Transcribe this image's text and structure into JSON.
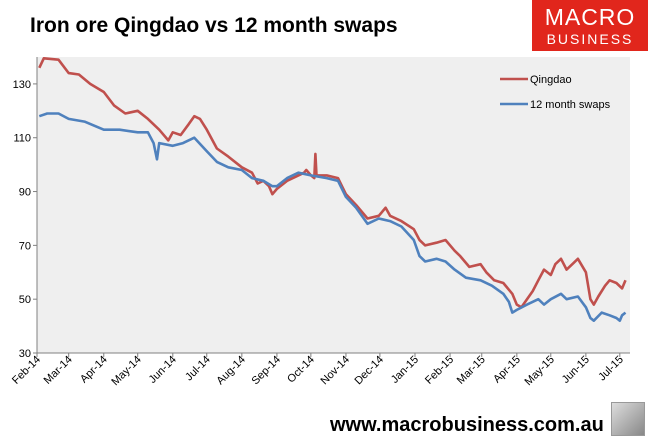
{
  "title": "Iron ore Qingdao vs 12 month swaps",
  "logo": {
    "line1": "MACRO",
    "line2": "BUSINESS"
  },
  "footer": "www.macrobusiness.com.au",
  "colors": {
    "qingdao": "#c0504d",
    "swaps": "#4f81bd",
    "plot_bg": "#efefef",
    "brand": "#e1261c"
  },
  "chart_data": {
    "type": "line",
    "title": "Iron ore Qingdao vs 12 month swaps",
    "xlabel": "",
    "ylabel": "",
    "ylim": [
      30,
      140
    ],
    "yticks": [
      30,
      50,
      70,
      90,
      110,
      130
    ],
    "xlim": [
      "2014-02-01",
      "2015-07-10"
    ],
    "xticks": [
      "Feb-14",
      "Mar-14",
      "Apr-14",
      "May-14",
      "Jun-14",
      "Jul-14",
      "Aug-14",
      "Sep-14",
      "Oct-14",
      "Nov-14",
      "Dec-14",
      "Jan-15",
      "Feb-15",
      "Mar-15",
      "Apr-15",
      "May-15",
      "Jun-15",
      "Jul-15"
    ],
    "xtick_dates": [
      "2014-02-01",
      "2014-03-01",
      "2014-04-01",
      "2014-05-01",
      "2014-06-01",
      "2014-07-01",
      "2014-08-01",
      "2014-09-01",
      "2014-10-01",
      "2014-11-01",
      "2014-12-01",
      "2015-01-01",
      "2015-02-01",
      "2015-03-01",
      "2015-04-01",
      "2015-05-01",
      "2015-06-01",
      "2015-07-01"
    ],
    "grid": false,
    "legend_position": "top-right",
    "series": [
      {
        "name": "Qingdao",
        "points": [
          [
            "2014-02-03",
            136
          ],
          [
            "2014-02-07",
            139.5
          ],
          [
            "2014-02-20",
            139
          ],
          [
            "2014-03-01",
            134
          ],
          [
            "2014-03-10",
            133.5
          ],
          [
            "2014-03-20",
            130
          ],
          [
            "2014-04-01",
            127
          ],
          [
            "2014-04-10",
            122
          ],
          [
            "2014-04-20",
            119
          ],
          [
            "2014-05-01",
            120
          ],
          [
            "2014-05-10",
            117
          ],
          [
            "2014-05-20",
            113
          ],
          [
            "2014-05-28",
            109
          ],
          [
            "2014-06-01",
            112
          ],
          [
            "2014-06-08",
            111
          ],
          [
            "2014-06-15",
            115
          ],
          [
            "2014-06-20",
            118
          ],
          [
            "2014-06-25",
            117
          ],
          [
            "2014-07-01",
            113
          ],
          [
            "2014-07-10",
            106
          ],
          [
            "2014-07-20",
            103
          ],
          [
            "2014-08-01",
            99
          ],
          [
            "2014-08-10",
            97
          ],
          [
            "2014-08-15",
            93
          ],
          [
            "2014-08-20",
            94
          ],
          [
            "2014-08-25",
            92
          ],
          [
            "2014-08-28",
            89
          ],
          [
            "2014-09-01",
            91
          ],
          [
            "2014-09-10",
            94
          ],
          [
            "2014-09-20",
            96
          ],
          [
            "2014-09-25",
            97
          ],
          [
            "2014-09-27",
            98
          ],
          [
            "2014-10-01",
            96
          ],
          [
            "2014-10-04",
            95
          ],
          [
            "2014-10-05",
            104
          ],
          [
            "2014-10-06",
            96
          ],
          [
            "2014-10-15",
            96
          ],
          [
            "2014-10-25",
            95
          ],
          [
            "2014-11-01",
            89
          ],
          [
            "2014-11-10",
            85
          ],
          [
            "2014-11-20",
            80
          ],
          [
            "2014-11-30",
            81
          ],
          [
            "2014-12-06",
            84
          ],
          [
            "2014-12-10",
            81
          ],
          [
            "2014-12-20",
            79
          ],
          [
            "2014-12-31",
            76
          ],
          [
            "2015-01-05",
            72
          ],
          [
            "2015-01-10",
            70
          ],
          [
            "2015-01-20",
            71
          ],
          [
            "2015-01-28",
            72
          ],
          [
            "2015-02-05",
            68
          ],
          [
            "2015-02-10",
            66
          ],
          [
            "2015-02-18",
            62
          ],
          [
            "2015-02-28",
            63
          ],
          [
            "2015-03-05",
            60
          ],
          [
            "2015-03-12",
            57
          ],
          [
            "2015-03-20",
            56
          ],
          [
            "2015-03-28",
            52
          ],
          [
            "2015-04-01",
            48
          ],
          [
            "2015-04-05",
            47
          ],
          [
            "2015-04-10",
            50
          ],
          [
            "2015-04-15",
            53
          ],
          [
            "2015-04-20",
            57
          ],
          [
            "2015-04-25",
            61
          ],
          [
            "2015-05-01",
            59
          ],
          [
            "2015-05-05",
            63
          ],
          [
            "2015-05-10",
            65
          ],
          [
            "2015-05-15",
            61
          ],
          [
            "2015-05-20",
            63
          ],
          [
            "2015-05-25",
            65
          ],
          [
            "2015-06-01",
            60
          ],
          [
            "2015-06-05",
            50
          ],
          [
            "2015-06-08",
            48
          ],
          [
            "2015-06-12",
            51
          ],
          [
            "2015-06-18",
            55
          ],
          [
            "2015-06-22",
            57
          ],
          [
            "2015-06-28",
            56
          ],
          [
            "2015-07-03",
            54
          ],
          [
            "2015-07-06",
            57
          ]
        ]
      },
      {
        "name": "12 month swaps",
        "points": [
          [
            "2014-02-03",
            118
          ],
          [
            "2014-02-10",
            119
          ],
          [
            "2014-02-20",
            119
          ],
          [
            "2014-03-01",
            117
          ],
          [
            "2014-03-15",
            116
          ],
          [
            "2014-04-01",
            113
          ],
          [
            "2014-04-15",
            113
          ],
          [
            "2014-05-01",
            112
          ],
          [
            "2014-05-10",
            112
          ],
          [
            "2014-05-15",
            108
          ],
          [
            "2014-05-18",
            102
          ],
          [
            "2014-05-20",
            108
          ],
          [
            "2014-06-01",
            107
          ],
          [
            "2014-06-10",
            108
          ],
          [
            "2014-06-20",
            110
          ],
          [
            "2014-07-01",
            105
          ],
          [
            "2014-07-10",
            101
          ],
          [
            "2014-07-20",
            99
          ],
          [
            "2014-08-01",
            98
          ],
          [
            "2014-08-10",
            95
          ],
          [
            "2014-08-20",
            94
          ],
          [
            "2014-08-28",
            92
          ],
          [
            "2014-09-01",
            92
          ],
          [
            "2014-09-10",
            95
          ],
          [
            "2014-09-20",
            97
          ],
          [
            "2014-10-01",
            96
          ],
          [
            "2014-10-15",
            95
          ],
          [
            "2014-10-25",
            94
          ],
          [
            "2014-11-01",
            88
          ],
          [
            "2014-11-10",
            84
          ],
          [
            "2014-11-20",
            78
          ],
          [
            "2014-11-30",
            80
          ],
          [
            "2014-12-10",
            79
          ],
          [
            "2014-12-20",
            77
          ],
          [
            "2014-12-31",
            72
          ],
          [
            "2015-01-05",
            66
          ],
          [
            "2015-01-10",
            64
          ],
          [
            "2015-01-20",
            65
          ],
          [
            "2015-01-28",
            64
          ],
          [
            "2015-02-05",
            61
          ],
          [
            "2015-02-15",
            58
          ],
          [
            "2015-02-28",
            57
          ],
          [
            "2015-03-10",
            55
          ],
          [
            "2015-03-20",
            52
          ],
          [
            "2015-03-25",
            49
          ],
          [
            "2015-03-28",
            45
          ],
          [
            "2015-04-01",
            46
          ],
          [
            "2015-04-10",
            48
          ],
          [
            "2015-04-20",
            50
          ],
          [
            "2015-04-25",
            48
          ],
          [
            "2015-05-01",
            50
          ],
          [
            "2015-05-10",
            52
          ],
          [
            "2015-05-15",
            50
          ],
          [
            "2015-05-25",
            51
          ],
          [
            "2015-06-01",
            47
          ],
          [
            "2015-06-05",
            43
          ],
          [
            "2015-06-08",
            42
          ],
          [
            "2015-06-15",
            45
          ],
          [
            "2015-06-22",
            44
          ],
          [
            "2015-06-28",
            43
          ],
          [
            "2015-07-01",
            42
          ],
          [
            "2015-07-03",
            44
          ],
          [
            "2015-07-06",
            45
          ]
        ]
      }
    ]
  }
}
